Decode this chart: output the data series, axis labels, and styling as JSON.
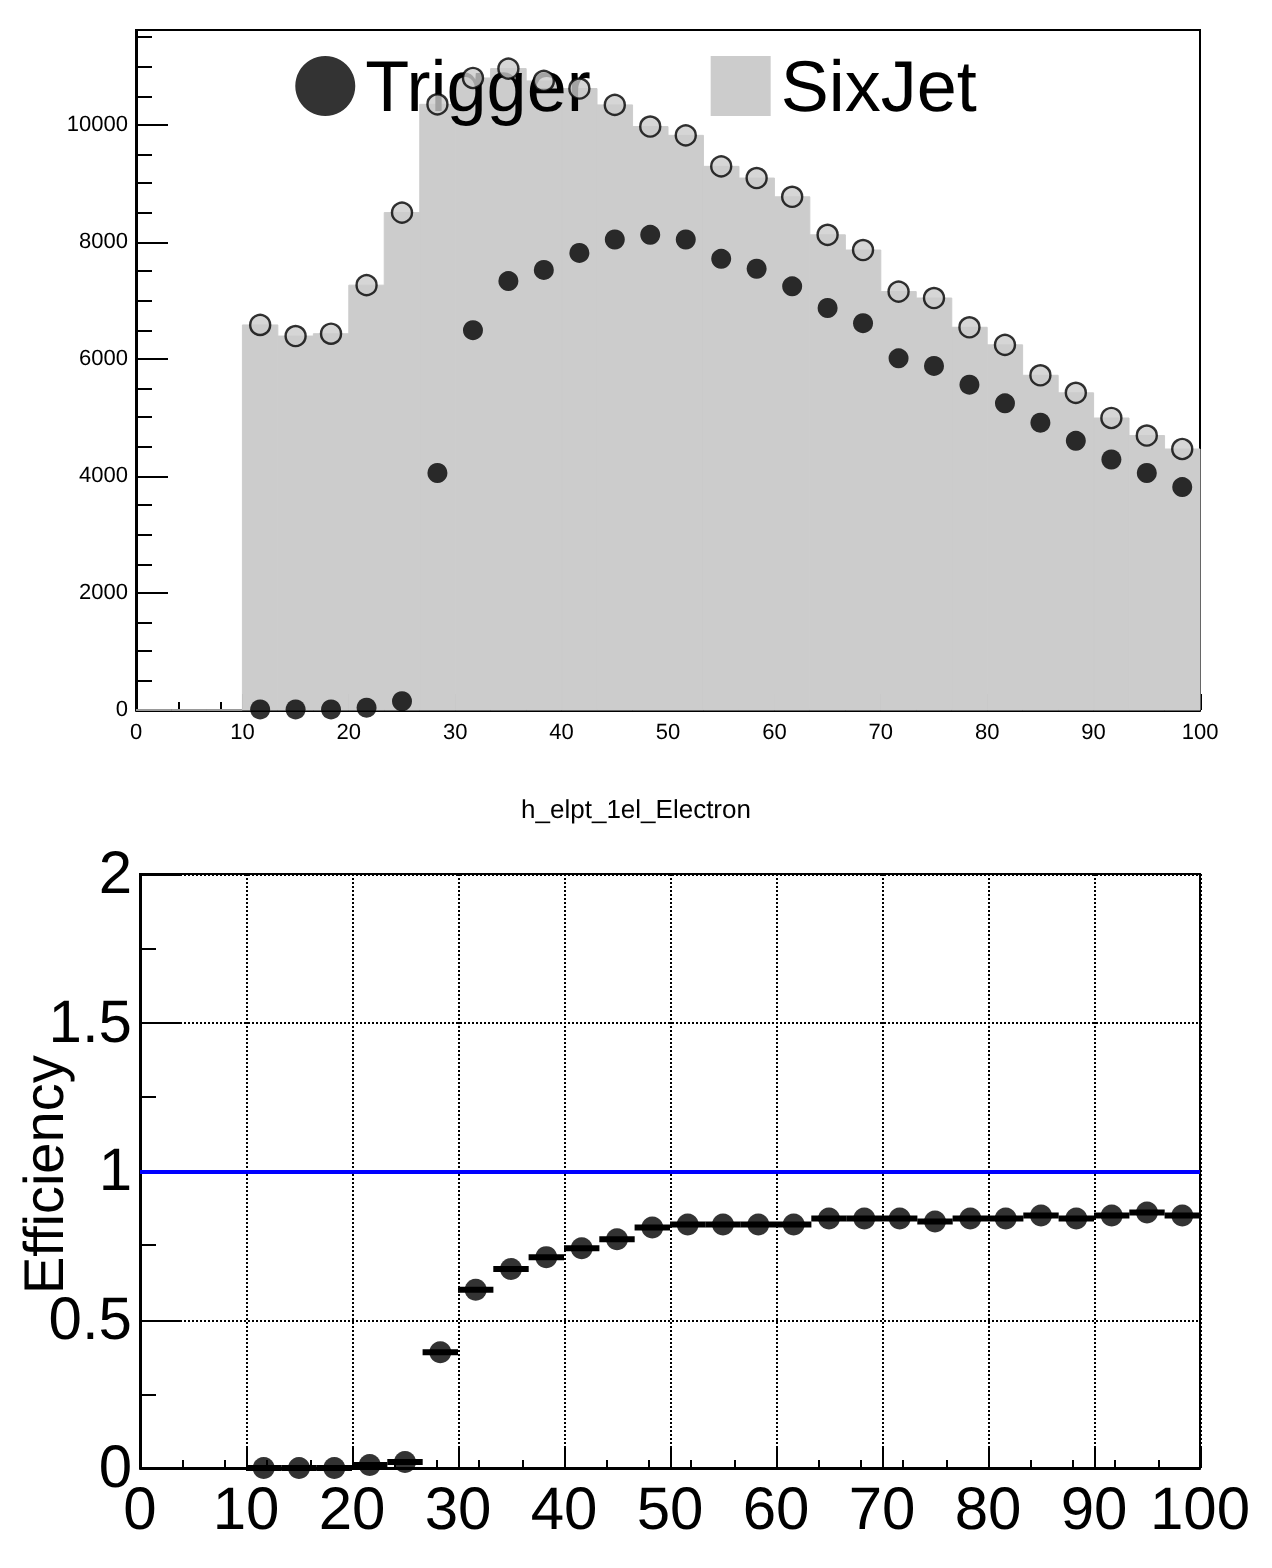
{
  "chart_data": [
    {
      "type": "histogram",
      "bins": [
        0,
        3.33,
        6.67,
        10,
        13.33,
        16.67,
        20,
        23.33,
        26.67,
        30,
        33.33,
        36.67,
        40,
        43.33,
        46.67,
        50,
        53.33,
        56.67,
        60,
        63.33,
        66.67,
        70,
        73.33,
        76.67,
        80,
        83.33,
        86.67,
        90,
        93.33,
        96.67,
        100
      ],
      "series": [
        {
          "name": "Trigger",
          "type": "scatter",
          "color": "#000000",
          "x": [
            11.67,
            15,
            18.33,
            21.67,
            25,
            28.33,
            31.67,
            35,
            38.33,
            41.67,
            45,
            48.33,
            51.67,
            55,
            58.33,
            61.67,
            65,
            68.33,
            71.67,
            75,
            78.33,
            81.67,
            85,
            88.33,
            91.67,
            95,
            98.33
          ],
          "values": [
            10,
            10,
            10,
            40,
            150,
            4050,
            6490,
            7330,
            7520,
            7810,
            8040,
            8120,
            8040,
            7710,
            7540,
            7240,
            6870,
            6610,
            6010,
            5880,
            5560,
            5240,
            4910,
            4600,
            4280,
            4050,
            3810
          ]
        },
        {
          "name": "SixJet",
          "type": "histogram",
          "color": "#cccccc",
          "values": [
            0,
            0,
            0,
            6580,
            6390,
            6430,
            7260,
            8500,
            10350,
            10800,
            10960,
            10750,
            10620,
            10340,
            9970,
            9820,
            9290,
            9090,
            8770,
            8120,
            7860,
            7150,
            7040,
            6540,
            6240,
            5720,
            5420,
            4990,
            4690,
            4460
          ]
        },
        {
          "type": "scatter",
          "color": "#cccccc",
          "x": [
            11.67,
            15,
            18.33,
            21.67,
            25,
            28.33,
            31.67,
            35,
            38.33,
            41.67,
            45,
            48.33,
            51.67,
            55,
            58.33,
            61.67,
            65,
            68.33,
            71.67,
            75,
            78.33,
            81.67,
            85,
            88.33,
            91.67,
            95,
            98.33
          ],
          "values": [
            6580,
            6390,
            6430,
            7260,
            8500,
            10350,
            10800,
            10960,
            10750,
            10620,
            10340,
            9970,
            9820,
            9290,
            9090,
            8770,
            8120,
            7860,
            7150,
            7040,
            6540,
            6240,
            5720,
            5420,
            4990,
            4690,
            4460
          ]
        }
      ],
      "xlim": [
        0,
        100
      ],
      "xticks": [
        0,
        10,
        20,
        30,
        40,
        50,
        60,
        70,
        80,
        90,
        100
      ],
      "ylim": [
        0,
        11620
      ],
      "yticks": [
        0,
        2000,
        4000,
        6000,
        8000,
        10000
      ],
      "marker": "circle",
      "legend": "top",
      "grid": false
    },
    {
      "type": "scatter",
      "title": "h_elpt_1el_Electron",
      "ylabel": "Efficiency",
      "series": [
        {
          "color": "#000000",
          "x": [
            11.67,
            15,
            18.33,
            21.67,
            25,
            28.33,
            31.67,
            35,
            38.33,
            41.67,
            45,
            48.33,
            51.67,
            55,
            58.33,
            61.67,
            65,
            68.33,
            71.67,
            75,
            78.33,
            81.67,
            85,
            88.33,
            91.67,
            95,
            98.33
          ],
          "values": [
            0,
            0,
            0,
            0.01,
            0.02,
            0.39,
            0.6,
            0.67,
            0.71,
            0.74,
            0.77,
            0.81,
            0.82,
            0.82,
            0.82,
            0.82,
            0.84,
            0.84,
            0.84,
            0.83,
            0.84,
            0.84,
            0.85,
            0.84,
            0.85,
            0.86,
            0.85
          ],
          "xerrors": [
            1.67,
            1.67,
            1.67,
            1.67,
            1.67,
            1.67,
            1.67,
            1.67,
            1.67,
            1.67,
            1.67,
            1.67,
            1.67,
            1.67,
            1.67,
            1.67,
            1.67,
            1.67,
            1.67,
            1.67,
            1.67,
            1.67,
            1.67,
            1.67,
            1.67,
            1.67,
            1.67
          ]
        }
      ],
      "xlim": [
        0,
        100
      ],
      "xticks": [
        0,
        10,
        20,
        30,
        40,
        50,
        60,
        70,
        80,
        90,
        100
      ],
      "ylim": [
        0,
        2
      ],
      "yticks": [
        0,
        0.5,
        1,
        {
          "value": 1.5,
          "label": "1.5"
        },
        2
      ],
      "marker": "circle",
      "grid": true,
      "legend": false,
      "ref_lines": [
        {
          "axis": "y",
          "value": 1,
          "color": "#0000ff"
        }
      ]
    }
  ]
}
